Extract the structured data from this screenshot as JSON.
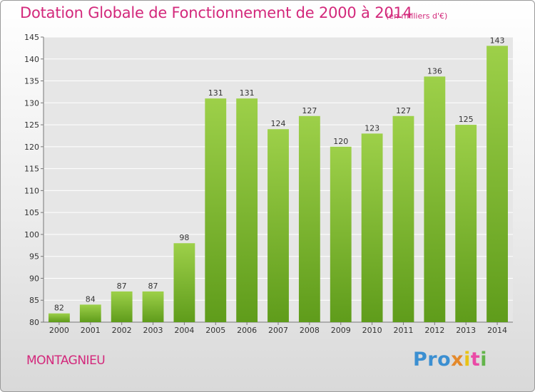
{
  "title": "Dotation Globale de Fonctionnement de 2000 à 2014",
  "subtitle": "(en milliers d'€)",
  "commune": "MONTAGNIEU",
  "logo": {
    "brand": "Proxiti",
    "parts": [
      "Pro",
      "x",
      "i",
      "t",
      "i"
    ]
  },
  "colors": {
    "accent": "#d3287b",
    "bar_top": "#9dd049",
    "bar_bottom": "#5f9c1b",
    "logo": [
      "#3b8fd1",
      "#e4892b",
      "#e9c316",
      "#ea4aa6",
      "#63b54b"
    ]
  },
  "chart_data": {
    "type": "bar",
    "title": "Dotation Globale de Fonctionnement de 2000 à 2014",
    "subtitle": "(en milliers d'€)",
    "xlabel": "",
    "ylabel": "",
    "categories": [
      "2000",
      "2001",
      "2002",
      "2003",
      "2004",
      "2005",
      "2006",
      "2007",
      "2008",
      "2009",
      "2010",
      "2011",
      "2012",
      "2013",
      "2014"
    ],
    "values": [
      82,
      84,
      87,
      87,
      98,
      131,
      131,
      124,
      127,
      120,
      123,
      127,
      136,
      125,
      143
    ],
    "ylim": [
      80,
      145
    ],
    "yticks": [
      80,
      85,
      90,
      95,
      100,
      105,
      110,
      115,
      120,
      125,
      130,
      135,
      140,
      145
    ],
    "grid": true,
    "data_labels": true,
    "legend": "none"
  }
}
